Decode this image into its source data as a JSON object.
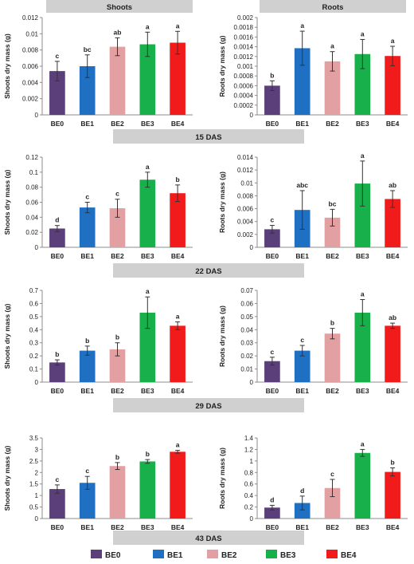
{
  "headers": {
    "shoots": "Shoots",
    "roots": "Roots"
  },
  "bands": [
    "15 DAS",
    "22 DAS",
    "29 DAS",
    "43 DAS"
  ],
  "colors": {
    "BE0": "#5b3f7a",
    "BE1": "#1f6fc2",
    "BE2": "#e3a0a2",
    "BE3": "#17b04a",
    "BE4": "#f21b1b",
    "band": "#d0d0d0"
  },
  "legend": [
    "BE0",
    "BE1",
    "BE2",
    "BE3",
    "BE4"
  ],
  "chart_data": [
    {
      "type": "bar",
      "stage": "15 DAS",
      "ylabel": "Shoots dry mass (g)",
      "categories": [
        "BE0",
        "BE1",
        "BE2",
        "BE3",
        "BE4"
      ],
      "values": [
        0.0054,
        0.006,
        0.0084,
        0.0087,
        0.0089
      ],
      "errors": [
        0.0012,
        0.0014,
        0.0011,
        0.0015,
        0.0014
      ],
      "letters": [
        "c",
        "bc",
        "ab",
        "a",
        "a"
      ],
      "ylim": [
        0,
        0.012
      ],
      "yticks": [
        "0",
        "0.002",
        "0.004",
        "0.006",
        "0.008",
        "0.01",
        "0.012"
      ]
    },
    {
      "type": "bar",
      "stage": "15 DAS",
      "ylabel": "Roots dry mass (g)",
      "categories": [
        "BE0",
        "BE1",
        "BE2",
        "BE3",
        "BE4"
      ],
      "values": [
        0.0006,
        0.00137,
        0.0011,
        0.00125,
        0.00121
      ],
      "errors": [
        0.0001,
        0.00035,
        0.0002,
        0.0003,
        0.0002
      ],
      "letters": [
        "b",
        "a",
        "a",
        "a",
        "a"
      ],
      "ylim": [
        0,
        0.002
      ],
      "yticks": [
        "0",
        "0.0002",
        "0.0004",
        "0.0006",
        "0.0008",
        "0.001",
        "0.0012",
        "0.0014",
        "0.0016",
        "0.0018",
        "0.002"
      ]
    },
    {
      "type": "bar",
      "stage": "22 DAS",
      "ylabel": "Shoots dry mass (g)",
      "categories": [
        "BE0",
        "BE1",
        "BE2",
        "BE3",
        "BE4"
      ],
      "values": [
        0.025,
        0.053,
        0.052,
        0.09,
        0.072
      ],
      "errors": [
        0.004,
        0.007,
        0.012,
        0.01,
        0.011
      ],
      "letters": [
        "d",
        "c",
        "c",
        "a",
        "b"
      ],
      "ylim": [
        0,
        0.12
      ],
      "yticks": [
        "0",
        "0.02",
        "0.04",
        "0.06",
        "0.08",
        "0.1",
        "0.12"
      ]
    },
    {
      "type": "bar",
      "stage": "22 DAS",
      "ylabel": "Roots dry mass (g)",
      "categories": [
        "BE0",
        "BE1",
        "BE2",
        "BE3",
        "BE4"
      ],
      "values": [
        0.0028,
        0.0058,
        0.0046,
        0.0099,
        0.0075
      ],
      "errors": [
        0.0006,
        0.003,
        0.0013,
        0.0035,
        0.0013
      ],
      "letters": [
        "c",
        "abc",
        "bc",
        "a",
        "ab"
      ],
      "ylim": [
        0,
        0.014
      ],
      "yticks": [
        "0",
        "0.002",
        "0.004",
        "0.006",
        "0.008",
        "0.01",
        "0.012",
        "0.014"
      ]
    },
    {
      "type": "bar",
      "stage": "29 DAS",
      "ylabel": "Shoots dry mass (g)",
      "categories": [
        "BE0",
        "BE1",
        "BE2",
        "BE3",
        "BE4"
      ],
      "values": [
        0.15,
        0.24,
        0.25,
        0.53,
        0.43
      ],
      "errors": [
        0.02,
        0.035,
        0.05,
        0.12,
        0.03
      ],
      "letters": [
        "b",
        "b",
        "b",
        "a",
        "a"
      ],
      "ylim": [
        0,
        0.7
      ],
      "yticks": [
        "0",
        "0.1",
        "0.2",
        "0.3",
        "0.4",
        "0.5",
        "0.6",
        "0.7"
      ]
    },
    {
      "type": "bar",
      "stage": "29 DAS",
      "ylabel": "Roots dry mass (g)",
      "categories": [
        "BE0",
        "BE1",
        "BE2",
        "BE3",
        "BE4"
      ],
      "values": [
        0.016,
        0.024,
        0.037,
        0.053,
        0.043
      ],
      "errors": [
        0.003,
        0.004,
        0.004,
        0.01,
        0.002
      ],
      "letters": [
        "c",
        "c",
        "b",
        "a",
        "ab"
      ],
      "ylim": [
        0,
        0.07
      ],
      "yticks": [
        "0",
        "0.01",
        "0.02",
        "0.03",
        "0.04",
        "0.05",
        "0.06",
        "0.07"
      ]
    },
    {
      "type": "bar",
      "stage": "43 DAS",
      "ylabel": "Shoots dry mass (g)",
      "categories": [
        "BE0",
        "BE1",
        "BE2",
        "BE3",
        "BE4"
      ],
      "values": [
        1.28,
        1.55,
        2.28,
        2.48,
        2.9
      ],
      "errors": [
        0.18,
        0.28,
        0.15,
        0.08,
        0.06
      ],
      "letters": [
        "c",
        "c",
        "b",
        "b",
        "a"
      ],
      "ylim": [
        0,
        3.5
      ],
      "yticks": [
        "0",
        "0.5",
        "1",
        "1.5",
        "2",
        "2.5",
        "3",
        "3.5"
      ]
    },
    {
      "type": "bar",
      "stage": "43 DAS",
      "ylabel": "Roots dry mass (g)",
      "categories": [
        "BE0",
        "BE1",
        "BE2",
        "BE3",
        "BE4"
      ],
      "values": [
        0.19,
        0.27,
        0.53,
        1.14,
        0.81
      ],
      "errors": [
        0.04,
        0.12,
        0.15,
        0.06,
        0.07
      ],
      "letters": [
        "d",
        "d",
        "c",
        "a",
        "b"
      ],
      "ylim": [
        0,
        1.4
      ],
      "yticks": [
        "0",
        "0.2",
        "0.4",
        "0.6",
        "0.8",
        "1",
        "1.2",
        "1.4"
      ]
    }
  ]
}
